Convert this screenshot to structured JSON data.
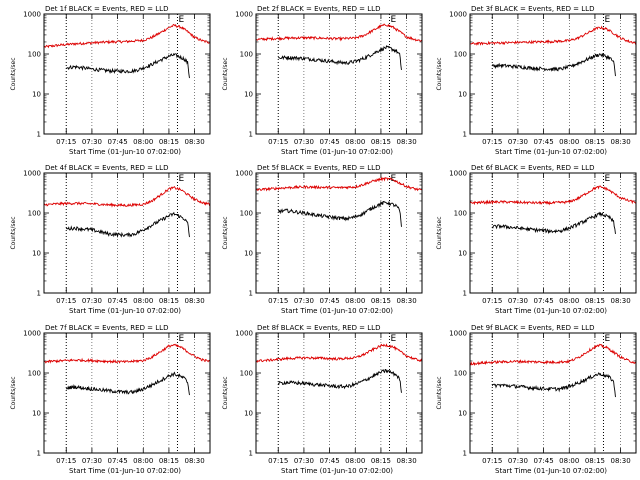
{
  "figure": {
    "colors": {
      "events": "#000000",
      "lld": "#dd0000",
      "axes": "#000000",
      "grid": "#000000"
    }
  },
  "chart_data": [
    {
      "type": "line",
      "title": "Det 1f BLACK = Events, RED = LLD",
      "xlabel": "Start Time (01-Jun-10 07:02:00)",
      "ylabel": "Counts/sec",
      "y_scale": "log",
      "ylim": [
        1,
        1000
      ],
      "xlim": [
        "07:02",
        "08:39"
      ],
      "x_tick_labels": [
        "07:15",
        "07:30",
        "07:45",
        "08:00",
        "08:15",
        "08:30"
      ],
      "y_tick_labels": [
        "1",
        "10",
        "100",
        "1000"
      ],
      "markers": [
        {
          "time": "07:15",
          "label": ""
        },
        {
          "time": "08:20",
          "label": "E"
        }
      ],
      "series": [
        {
          "name": "LLD",
          "x": [
            "07:02",
            "07:10",
            "07:20",
            "07:30",
            "07:40",
            "07:50",
            "08:00",
            "08:05",
            "08:10",
            "08:15",
            "08:18",
            "08:22",
            "08:26",
            "08:30",
            "08:35",
            "08:39"
          ],
          "y": [
            150,
            165,
            180,
            190,
            200,
            205,
            220,
            260,
            340,
            460,
            520,
            470,
            360,
            260,
            210,
            195
          ]
        },
        {
          "name": "Events",
          "x": [
            "07:15",
            "07:20",
            "07:30",
            "07:40",
            "07:50",
            "07:55",
            "08:00",
            "08:05",
            "08:10",
            "08:15",
            "08:18",
            "08:20",
            "08:24",
            "08:26",
            "08:27"
          ],
          "y": [
            45,
            48,
            42,
            38,
            37,
            38,
            45,
            55,
            70,
            88,
            95,
            90,
            75,
            60,
            25
          ]
        }
      ]
    },
    {
      "type": "line",
      "title": "Det 2f BLACK = Events, RED = LLD",
      "xlabel": "Start Time (01-Jun-10 07:02:00)",
      "ylabel": "Counts/sec",
      "y_scale": "log",
      "ylim": [
        1,
        1000
      ],
      "xlim": [
        "07:02",
        "08:39"
      ],
      "x_tick_labels": [
        "07:15",
        "07:30",
        "07:45",
        "08:00",
        "08:15",
        "08:30"
      ],
      "y_tick_labels": [
        "1",
        "10",
        "100",
        "1000"
      ],
      "markers": [
        {
          "time": "07:15",
          "label": ""
        },
        {
          "time": "08:20",
          "label": "E"
        }
      ],
      "series": [
        {
          "name": "LLD",
          "x": [
            "07:02",
            "07:10",
            "07:20",
            "07:30",
            "07:40",
            "07:50",
            "08:00",
            "08:05",
            "08:10",
            "08:15",
            "08:18",
            "08:22",
            "08:26",
            "08:30",
            "08:35",
            "08:39"
          ],
          "y": [
            230,
            240,
            250,
            255,
            250,
            240,
            250,
            290,
            380,
            500,
            540,
            470,
            360,
            270,
            230,
            215
          ]
        },
        {
          "name": "Events",
          "x": [
            "07:15",
            "07:20",
            "07:30",
            "07:40",
            "07:50",
            "07:55",
            "08:00",
            "08:05",
            "08:10",
            "08:15",
            "08:18",
            "08:20",
            "08:24",
            "08:26",
            "08:27"
          ],
          "y": [
            80,
            82,
            78,
            70,
            62,
            60,
            65,
            78,
            100,
            130,
            145,
            140,
            120,
            95,
            40
          ]
        }
      ]
    },
    {
      "type": "line",
      "title": "Det 3f BLACK = Events, RED = LLD",
      "xlabel": "Start Time (01-Jun-10 07:02:00)",
      "ylabel": "Counts/sec",
      "y_scale": "log",
      "ylim": [
        1,
        1000
      ],
      "xlim": [
        "07:02",
        "08:39"
      ],
      "x_tick_labels": [
        "07:15",
        "07:30",
        "07:45",
        "08:00",
        "08:15",
        "08:30"
      ],
      "y_tick_labels": [
        "1",
        "10",
        "100",
        "1000"
      ],
      "markers": [
        {
          "time": "07:15",
          "label": ""
        },
        {
          "time": "08:20",
          "label": "E"
        }
      ],
      "series": [
        {
          "name": "LLD",
          "x": [
            "07:02",
            "07:10",
            "07:20",
            "07:30",
            "07:40",
            "07:50",
            "08:00",
            "08:05",
            "08:10",
            "08:15",
            "08:18",
            "08:22",
            "08:26",
            "08:30",
            "08:35",
            "08:39"
          ],
          "y": [
            180,
            185,
            190,
            195,
            200,
            205,
            215,
            250,
            320,
            420,
            460,
            420,
            330,
            250,
            205,
            190
          ]
        },
        {
          "name": "Events",
          "x": [
            "07:15",
            "07:20",
            "07:30",
            "07:40",
            "07:50",
            "07:55",
            "08:00",
            "08:05",
            "08:10",
            "08:15",
            "08:18",
            "08:20",
            "08:24",
            "08:26",
            "08:27"
          ],
          "y": [
            50,
            52,
            48,
            44,
            42,
            42,
            48,
            58,
            72,
            90,
            98,
            92,
            78,
            62,
            28
          ]
        }
      ]
    },
    {
      "type": "line",
      "title": "Det 4f BLACK = Events, RED = LLD",
      "xlabel": "Start Time (01-Jun-10 07:02:00)",
      "ylabel": "Counts/sec",
      "y_scale": "log",
      "ylim": [
        1,
        1000
      ],
      "xlim": [
        "07:02",
        "08:39"
      ],
      "x_tick_labels": [
        "07:15",
        "07:30",
        "07:45",
        "08:00",
        "08:15",
        "08:30"
      ],
      "y_tick_labels": [
        "1",
        "10",
        "100",
        "1000"
      ],
      "markers": [
        {
          "time": "07:15",
          "label": ""
        },
        {
          "time": "08:20",
          "label": "E"
        }
      ],
      "series": [
        {
          "name": "LLD",
          "x": [
            "07:02",
            "07:10",
            "07:20",
            "07:30",
            "07:40",
            "07:50",
            "08:00",
            "08:05",
            "08:10",
            "08:15",
            "08:18",
            "08:22",
            "08:26",
            "08:30",
            "08:35",
            "08:39"
          ],
          "y": [
            160,
            170,
            175,
            170,
            160,
            155,
            165,
            200,
            280,
            400,
            430,
            380,
            290,
            220,
            180,
            165
          ]
        },
        {
          "name": "Events",
          "x": [
            "07:15",
            "07:20",
            "07:30",
            "07:40",
            "07:50",
            "07:55",
            "08:00",
            "08:05",
            "08:10",
            "08:15",
            "08:18",
            "08:20",
            "08:24",
            "08:26",
            "08:27"
          ],
          "y": [
            40,
            42,
            38,
            30,
            28,
            30,
            38,
            50,
            65,
            85,
            95,
            88,
            72,
            55,
            25
          ]
        }
      ]
    },
    {
      "type": "line",
      "title": "Det 5f BLACK = Events, RED = LLD",
      "xlabel": "Start Time (01-Jun-10 07:02:00)",
      "ylabel": "Counts/sec",
      "y_scale": "log",
      "ylim": [
        1,
        1000
      ],
      "xlim": [
        "07:02",
        "08:39"
      ],
      "x_tick_labels": [
        "07:15",
        "07:30",
        "07:45",
        "08:00",
        "08:15",
        "08:30"
      ],
      "y_tick_labels": [
        "1",
        "10",
        "100",
        "1000"
      ],
      "markers": [
        {
          "time": "07:15",
          "label": ""
        },
        {
          "time": "08:20",
          "label": "E"
        }
      ],
      "series": [
        {
          "name": "LLD",
          "x": [
            "07:02",
            "07:10",
            "07:20",
            "07:30",
            "07:40",
            "07:50",
            "08:00",
            "08:05",
            "08:10",
            "08:15",
            "08:18",
            "08:22",
            "08:26",
            "08:30",
            "08:35",
            "08:39"
          ],
          "y": [
            380,
            400,
            430,
            450,
            440,
            430,
            450,
            520,
            620,
            700,
            720,
            680,
            560,
            460,
            400,
            370
          ]
        },
        {
          "name": "Events",
          "x": [
            "07:15",
            "07:20",
            "07:30",
            "07:40",
            "07:50",
            "07:55",
            "08:00",
            "08:05",
            "08:10",
            "08:15",
            "08:18",
            "08:20",
            "08:24",
            "08:26",
            "08:27"
          ],
          "y": [
            110,
            115,
            100,
            85,
            75,
            72,
            80,
            100,
            135,
            170,
            185,
            175,
            150,
            115,
            45
          ]
        }
      ]
    },
    {
      "type": "line",
      "title": "Det 6f BLACK = Events, RED = LLD",
      "xlabel": "Start Time (01-Jun-10 07:02:00)",
      "ylabel": "Counts/sec",
      "y_scale": "log",
      "ylim": [
        1,
        1000
      ],
      "xlim": [
        "07:02",
        "08:39"
      ],
      "x_tick_labels": [
        "07:15",
        "07:30",
        "07:45",
        "08:00",
        "08:15",
        "08:30"
      ],
      "y_tick_labels": [
        "1",
        "10",
        "100",
        "1000"
      ],
      "markers": [
        {
          "time": "07:15",
          "label": ""
        },
        {
          "time": "08:20",
          "label": "E"
        }
      ],
      "series": [
        {
          "name": "LLD",
          "x": [
            "07:02",
            "07:10",
            "07:20",
            "07:30",
            "07:40",
            "07:50",
            "08:00",
            "08:05",
            "08:10",
            "08:15",
            "08:18",
            "08:22",
            "08:26",
            "08:30",
            "08:35",
            "08:39"
          ],
          "y": [
            180,
            185,
            190,
            185,
            180,
            178,
            190,
            230,
            310,
            420,
            450,
            400,
            310,
            240,
            200,
            185
          ]
        },
        {
          "name": "Events",
          "x": [
            "07:15",
            "07:20",
            "07:30",
            "07:40",
            "07:50",
            "07:55",
            "08:00",
            "08:05",
            "08:10",
            "08:15",
            "08:18",
            "08:20",
            "08:24",
            "08:26",
            "08:27"
          ],
          "y": [
            45,
            47,
            42,
            38,
            35,
            36,
            42,
            52,
            66,
            85,
            95,
            90,
            75,
            58,
            30
          ]
        }
      ]
    },
    {
      "type": "line",
      "title": "Det 7f BLACK = Events, RED = LLD",
      "xlabel": "Start Time (01-Jun-10 07:02:00)",
      "ylabel": "Counts/sec",
      "y_scale": "log",
      "ylim": [
        1,
        1000
      ],
      "xlim": [
        "07:02",
        "08:39"
      ],
      "x_tick_labels": [
        "07:15",
        "07:30",
        "07:45",
        "08:00",
        "08:15",
        "08:30"
      ],
      "y_tick_labels": [
        "1",
        "10",
        "100",
        "1000"
      ],
      "markers": [
        {
          "time": "07:15",
          "label": ""
        },
        {
          "time": "08:20",
          "label": "E"
        }
      ],
      "series": [
        {
          "name": "LLD",
          "x": [
            "07:02",
            "07:10",
            "07:20",
            "07:30",
            "07:40",
            "07:50",
            "08:00",
            "08:05",
            "08:10",
            "08:15",
            "08:18",
            "08:22",
            "08:26",
            "08:30",
            "08:35",
            "08:39"
          ],
          "y": [
            190,
            200,
            210,
            205,
            195,
            190,
            205,
            250,
            340,
            470,
            500,
            440,
            340,
            260,
            210,
            195
          ]
        },
        {
          "name": "Events",
          "x": [
            "07:15",
            "07:20",
            "07:30",
            "07:40",
            "07:50",
            "07:55",
            "08:00",
            "08:05",
            "08:10",
            "08:15",
            "08:18",
            "08:20",
            "08:24",
            "08:26",
            "08:27"
          ],
          "y": [
            42,
            45,
            40,
            36,
            33,
            34,
            40,
            50,
            65,
            85,
            95,
            88,
            74,
            58,
            28
          ]
        }
      ]
    },
    {
      "type": "line",
      "title": "Det 8f BLACK = Events, RED = LLD",
      "xlabel": "Start Time (01-Jun-10 07:02:00)",
      "ylabel": "Counts/sec",
      "y_scale": "log",
      "ylim": [
        1,
        1000
      ],
      "xlim": [
        "07:02",
        "08:39"
      ],
      "x_tick_labels": [
        "07:15",
        "07:30",
        "07:45",
        "08:00",
        "08:15",
        "08:30"
      ],
      "y_tick_labels": [
        "1",
        "10",
        "100",
        "1000"
      ],
      "markers": [
        {
          "time": "07:15",
          "label": ""
        },
        {
          "time": "08:20",
          "label": "E"
        }
      ],
      "series": [
        {
          "name": "LLD",
          "x": [
            "07:02",
            "07:10",
            "07:20",
            "07:30",
            "07:40",
            "07:50",
            "08:00",
            "08:05",
            "08:10",
            "08:15",
            "08:18",
            "08:22",
            "08:26",
            "08:30",
            "08:35",
            "08:39"
          ],
          "y": [
            200,
            210,
            230,
            240,
            235,
            225,
            240,
            290,
            380,
            480,
            500,
            450,
            350,
            270,
            220,
            205
          ]
        },
        {
          "name": "Events",
          "x": [
            "07:15",
            "07:20",
            "07:30",
            "07:40",
            "07:50",
            "07:55",
            "08:00",
            "08:05",
            "08:10",
            "08:15",
            "08:18",
            "08:20",
            "08:24",
            "08:26",
            "08:27"
          ],
          "y": [
            55,
            58,
            55,
            50,
            46,
            46,
            52,
            64,
            82,
            105,
            115,
            108,
            90,
            70,
            32
          ]
        }
      ]
    },
    {
      "type": "line",
      "title": "Det 9f BLACK = Events, RED = LLD",
      "xlabel": "Start Time (01-Jun-10 07:02:00)",
      "ylabel": "Counts/sec",
      "y_scale": "log",
      "ylim": [
        1,
        1000
      ],
      "xlim": [
        "07:02",
        "08:39"
      ],
      "x_tick_labels": [
        "07:15",
        "07:30",
        "07:45",
        "08:00",
        "08:15",
        "08:30"
      ],
      "y_tick_labels": [
        "1",
        "10",
        "100",
        "1000"
      ],
      "markers": [
        {
          "time": "07:15",
          "label": ""
        },
        {
          "time": "08:20",
          "label": "E"
        }
      ],
      "series": [
        {
          "name": "LLD",
          "x": [
            "07:02",
            "07:10",
            "07:20",
            "07:30",
            "07:40",
            "07:50",
            "08:00",
            "08:05",
            "08:10",
            "08:15",
            "08:18",
            "08:22",
            "08:26",
            "08:30",
            "08:35",
            "08:39"
          ],
          "y": [
            170,
            180,
            190,
            195,
            190,
            185,
            195,
            240,
            330,
            450,
            490,
            430,
            330,
            250,
            200,
            180
          ]
        },
        {
          "name": "Events",
          "x": [
            "07:15",
            "07:20",
            "07:30",
            "07:40",
            "07:50",
            "07:55",
            "08:00",
            "08:05",
            "08:10",
            "08:15",
            "08:18",
            "08:20",
            "08:24",
            "08:26",
            "08:27"
          ],
          "y": [
            48,
            50,
            46,
            42,
            40,
            40,
            46,
            56,
            70,
            88,
            96,
            90,
            76,
            60,
            25
          ]
        }
      ]
    }
  ]
}
